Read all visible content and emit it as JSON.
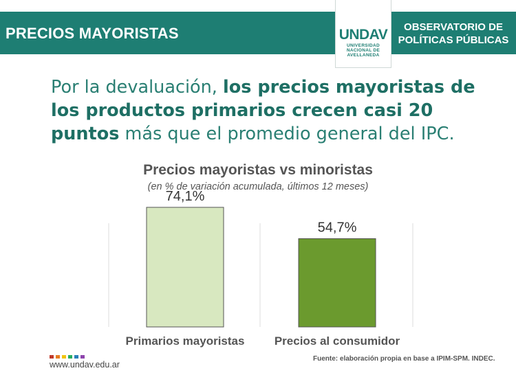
{
  "header": {
    "title": "PRECIOS MAYORISTAS",
    "logo_mark": "UNDAV",
    "logo_sub": "UNIVERSIDAD NACIONAL DE AVELLANEDA",
    "org": "OBSERVATORIO DE POLÍTICAS PÚBLICAS",
    "colors": {
      "bar": "#1e7e73"
    }
  },
  "headline": {
    "part1": "Por la devaluación, ",
    "bold": "los precios mayoristas de los productos primarios crecen casi 20 puntos",
    "part2": " más que el promedio general del IPC."
  },
  "chart_data": {
    "type": "bar",
    "title": "Precios mayoristas vs minoristas",
    "subtitle": "(en % de variación acumulada, últimos 12 meses)",
    "categories": [
      "Primarios mayoristas",
      "Precios al consumidor"
    ],
    "values": [
      74.1,
      54.7
    ],
    "value_labels": [
      "74,1%",
      "54,7%"
    ],
    "colors": [
      "#d8e8c0",
      "#6b9a2e"
    ],
    "ylim": [
      0,
      80
    ],
    "grid": false,
    "legend": "none"
  },
  "footer": {
    "url": "www.undav.edu.ar",
    "source": "Fuente: elaboración propia en base a IPIM-SPM. INDEC.",
    "dot_colors": [
      "#c0392b",
      "#e67e22",
      "#f1c40f",
      "#27ae60",
      "#2980b9",
      "#8e44ad"
    ]
  }
}
